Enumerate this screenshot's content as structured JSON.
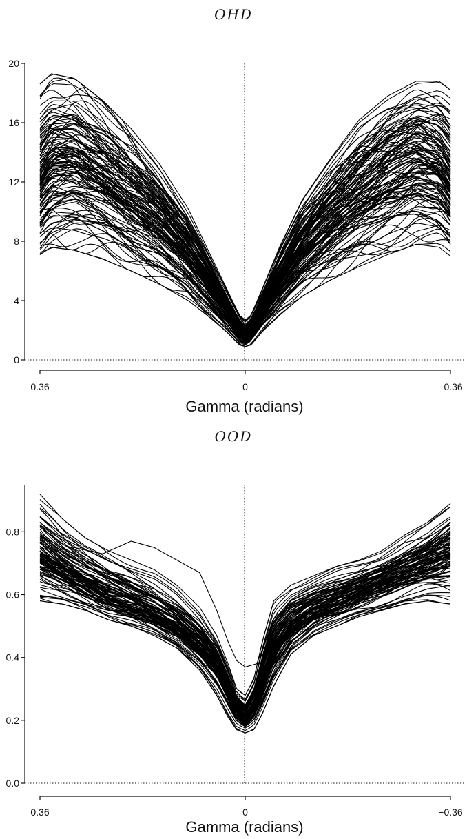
{
  "chart_data": [
    {
      "type": "line",
      "title": "OHD",
      "xlabel": "Gamma (radians)",
      "ylabel": "",
      "x_ticks": [
        "0.36",
        "0",
        "-0.36"
      ],
      "x_range": [
        0.36,
        -0.36
      ],
      "y_ticks": [
        "0",
        "4",
        "8",
        "12",
        "16",
        "20"
      ],
      "ylim": [
        0,
        20
      ],
      "reference_lines": {
        "x": 0,
        "y": 0
      },
      "band": {
        "x": [
          0.36,
          0.34,
          0.3,
          0.25,
          0.2,
          0.15,
          0.1,
          0.06,
          0.03,
          0.01,
          0.0,
          -0.01,
          -0.03,
          -0.06,
          -0.1,
          -0.15,
          -0.2,
          -0.25,
          -0.3,
          -0.34,
          -0.36
        ],
        "upper": [
          18.6,
          19.3,
          19.0,
          17.5,
          15.6,
          13.2,
          10.2,
          7.0,
          4.6,
          3.0,
          2.7,
          3.0,
          4.8,
          7.6,
          10.8,
          13.6,
          16.2,
          17.8,
          18.8,
          18.8,
          18.2
        ],
        "median": [
          12.0,
          13.2,
          13.5,
          12.4,
          10.8,
          9.4,
          7.4,
          5.2,
          3.4,
          2.1,
          1.6,
          2.1,
          3.5,
          5.3,
          7.6,
          9.6,
          11.4,
          12.9,
          13.9,
          13.3,
          12.0
        ],
        "lower": [
          7.1,
          7.6,
          7.4,
          6.8,
          6.0,
          5.1,
          4.0,
          2.8,
          1.8,
          1.0,
          0.9,
          1.0,
          1.9,
          3.0,
          4.3,
          5.4,
          6.3,
          7.1,
          7.8,
          7.6,
          7.0
        ]
      },
      "n_curves": 120
    },
    {
      "type": "line",
      "title": "OOD",
      "xlabel": "Gamma (radians)",
      "ylabel": "",
      "x_ticks": [
        "0.36",
        "0",
        "-0.36"
      ],
      "x_range": [
        0.36,
        -0.36
      ],
      "y_ticks": [
        "0.0",
        "0.2",
        "0.4",
        "0.6",
        "0.8"
      ],
      "ylim": [
        0.0,
        0.95
      ],
      "reference_lines": {
        "x": 0,
        "y": 0
      },
      "band": {
        "x": [
          0.36,
          0.32,
          0.28,
          0.24,
          0.2,
          0.16,
          0.12,
          0.08,
          0.05,
          0.03,
          0.015,
          0.0,
          -0.015,
          -0.03,
          -0.05,
          -0.08,
          -0.12,
          -0.16,
          -0.2,
          -0.24,
          -0.28,
          -0.32,
          -0.36
        ],
        "upper": [
          0.92,
          0.84,
          0.78,
          0.74,
          0.71,
          0.68,
          0.63,
          0.56,
          0.47,
          0.38,
          0.3,
          0.28,
          0.33,
          0.45,
          0.58,
          0.63,
          0.66,
          0.69,
          0.71,
          0.74,
          0.79,
          0.83,
          0.89
        ],
        "median": [
          0.73,
          0.68,
          0.64,
          0.6,
          0.57,
          0.54,
          0.5,
          0.44,
          0.38,
          0.31,
          0.24,
          0.21,
          0.25,
          0.33,
          0.43,
          0.5,
          0.55,
          0.58,
          0.61,
          0.64,
          0.67,
          0.7,
          0.73
        ],
        "lower": [
          0.58,
          0.57,
          0.55,
          0.52,
          0.5,
          0.47,
          0.43,
          0.36,
          0.28,
          0.21,
          0.17,
          0.16,
          0.17,
          0.22,
          0.31,
          0.41,
          0.47,
          0.5,
          0.53,
          0.55,
          0.57,
          0.58,
          0.57
        ]
      },
      "outlier": {
        "x": [
          0.36,
          0.3,
          0.25,
          0.2,
          0.16,
          0.12,
          0.08,
          0.05,
          0.03,
          0.015,
          0.0,
          -0.02,
          -0.04,
          -0.08,
          -0.14,
          -0.2,
          -0.26,
          -0.32,
          -0.36
        ],
        "y": [
          0.82,
          0.75,
          0.73,
          0.77,
          0.75,
          0.71,
          0.67,
          0.55,
          0.45,
          0.39,
          0.37,
          0.38,
          0.47,
          0.58,
          0.63,
          0.66,
          0.7,
          0.74,
          0.78
        ]
      },
      "n_curves": 100
    }
  ]
}
